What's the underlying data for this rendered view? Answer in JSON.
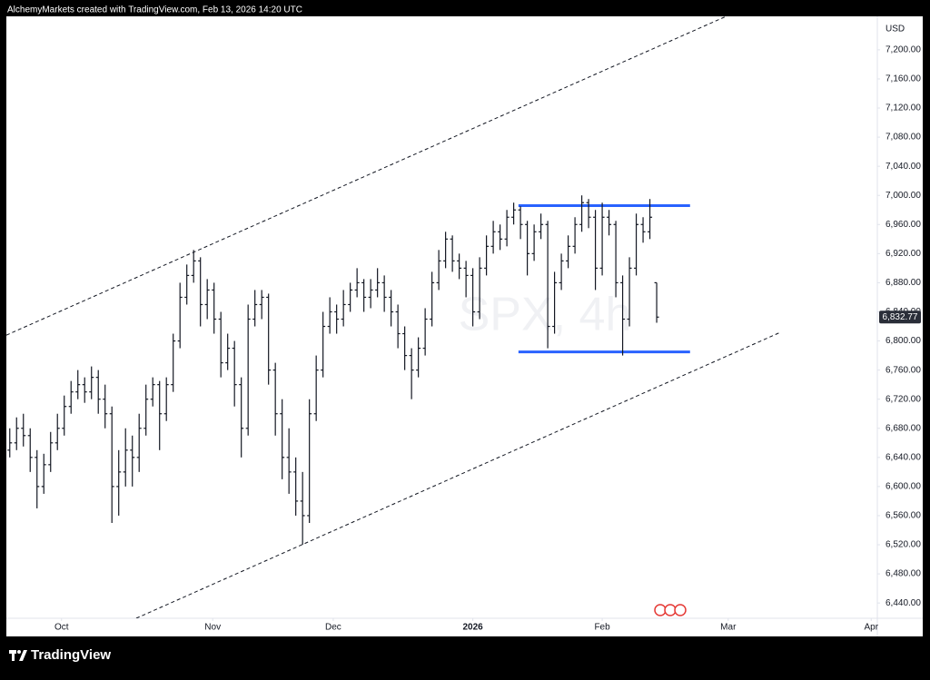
{
  "header": "AlchemyMarkets created with TradingView.com, Feb 13, 2026 14:20 UTC",
  "footer": {
    "logo_text": "TradingView"
  },
  "chart_data": {
    "type": "ohlc",
    "watermark": "SPX, 4h",
    "currency": "USD",
    "color": "#131722",
    "ylim": [
      6419,
      7246
    ],
    "yticks": [
      {
        "value": 6440,
        "label": "6,440.00"
      },
      {
        "value": 6480,
        "label": "6,480.00"
      },
      {
        "value": 6520,
        "label": "6,520.00"
      },
      {
        "value": 6560,
        "label": "6,560.00"
      },
      {
        "value": 6600,
        "label": "6,600.00"
      },
      {
        "value": 6640,
        "label": "6,640.00"
      },
      {
        "value": 6680,
        "label": "6,680.00"
      },
      {
        "value": 6720,
        "label": "6,720.00"
      },
      {
        "value": 6760,
        "label": "6,760.00"
      },
      {
        "value": 6800,
        "label": "6,800.00"
      },
      {
        "value": 6840,
        "label": "6,840.00"
      },
      {
        "value": 6880,
        "label": "6,880.00"
      },
      {
        "value": 6920,
        "label": "6,920.00"
      },
      {
        "value": 6960,
        "label": "6,960.00"
      },
      {
        "value": 7000,
        "label": "7,000.00"
      },
      {
        "value": 7040,
        "label": "7,040.00"
      },
      {
        "value": 7080,
        "label": "7,080.00"
      },
      {
        "value": 7120,
        "label": "7,120.00"
      },
      {
        "value": 7160,
        "label": "7,160.00"
      },
      {
        "value": 7200,
        "label": "7,200.00"
      }
    ],
    "xlim": [
      0,
      127.9
    ],
    "xticks": [
      {
        "value": 8.1,
        "label": "Oct"
      },
      {
        "value": 30.3,
        "label": "Nov"
      },
      {
        "value": 48,
        "label": "Dec"
      },
      {
        "value": 68.5,
        "label": "2026"
      },
      {
        "value": 87.5,
        "label": "Feb"
      },
      {
        "value": 106,
        "label": "Mar"
      },
      {
        "value": 127,
        "label": "Apr"
      }
    ],
    "last_value_label": "6,832.77",
    "ohlc": [
      [
        6650,
        6680,
        6640,
        6660
      ],
      [
        6660,
        6695,
        6650,
        6680
      ],
      [
        6680,
        6700,
        6655,
        6670
      ],
      [
        6670,
        6680,
        6620,
        6640
      ],
      [
        6640,
        6650,
        6570,
        6600
      ],
      [
        6600,
        6645,
        6590,
        6630
      ],
      [
        6630,
        6675,
        6620,
        6660
      ],
      [
        6660,
        6700,
        6650,
        6680
      ],
      [
        6680,
        6725,
        6670,
        6710
      ],
      [
        6710,
        6745,
        6700,
        6730
      ],
      [
        6730,
        6760,
        6720,
        6740
      ],
      [
        6740,
        6750,
        6715,
        6730
      ],
      [
        6730,
        6765,
        6720,
        6750
      ],
      [
        6750,
        6760,
        6700,
        6720
      ],
      [
        6720,
        6740,
        6680,
        6700
      ],
      [
        6700,
        6710,
        6550,
        6600
      ],
      [
        6600,
        6650,
        6560,
        6620
      ],
      [
        6620,
        6680,
        6600,
        6650
      ],
      [
        6650,
        6670,
        6600,
        6640
      ],
      [
        6640,
        6700,
        6620,
        6680
      ],
      [
        6680,
        6740,
        6670,
        6720
      ],
      [
        6720,
        6750,
        6710,
        6740
      ],
      [
        6740,
        6745,
        6650,
        6700
      ],
      [
        6700,
        6750,
        6690,
        6740
      ],
      [
        6740,
        6810,
        6730,
        6800
      ],
      [
        6800,
        6880,
        6790,
        6860
      ],
      [
        6860,
        6905,
        6850,
        6890
      ],
      [
        6890,
        6925,
        6880,
        6910
      ],
      [
        6910,
        6915,
        6820,
        6850
      ],
      [
        6850,
        6885,
        6830,
        6870
      ],
      [
        6870,
        6880,
        6810,
        6830
      ],
      [
        6830,
        6840,
        6750,
        6770
      ],
      [
        6770,
        6810,
        6760,
        6790
      ],
      [
        6790,
        6800,
        6710,
        6740
      ],
      [
        6740,
        6750,
        6640,
        6680
      ],
      [
        6680,
        6850,
        6670,
        6830
      ],
      [
        6830,
        6870,
        6820,
        6850
      ],
      [
        6850,
        6870,
        6830,
        6860
      ],
      [
        6860,
        6865,
        6740,
        6760
      ],
      [
        6760,
        6770,
        6670,
        6700
      ],
      [
        6700,
        6720,
        6610,
        6640
      ],
      [
        6640,
        6680,
        6590,
        6620
      ],
      [
        6620,
        6640,
        6560,
        6580
      ],
      [
        6580,
        6620,
        6520,
        6560
      ],
      [
        6560,
        6720,
        6550,
        6700
      ],
      [
        6700,
        6780,
        6690,
        6760
      ],
      [
        6760,
        6840,
        6750,
        6820
      ],
      [
        6820,
        6860,
        6810,
        6840
      ],
      [
        6840,
        6850,
        6810,
        6830
      ],
      [
        6830,
        6870,
        6820,
        6850
      ],
      [
        6850,
        6880,
        6840,
        6870
      ],
      [
        6870,
        6900,
        6860,
        6880
      ],
      [
        6880,
        6885,
        6840,
        6860
      ],
      [
        6860,
        6885,
        6845,
        6870
      ],
      [
        6870,
        6900,
        6860,
        6880
      ],
      [
        6880,
        6890,
        6840,
        6860
      ],
      [
        6860,
        6870,
        6820,
        6840
      ],
      [
        6840,
        6850,
        6790,
        6810
      ],
      [
        6810,
        6820,
        6760,
        6780
      ],
      [
        6780,
        6790,
        6720,
        6760
      ],
      [
        6760,
        6805,
        6750,
        6790
      ],
      [
        6790,
        6845,
        6780,
        6830
      ],
      [
        6830,
        6895,
        6820,
        6880
      ],
      [
        6880,
        6925,
        6870,
        6910
      ],
      [
        6910,
        6950,
        6900,
        6940
      ],
      [
        6940,
        6945,
        6895,
        6910
      ],
      [
        6910,
        6920,
        6885,
        6900
      ],
      [
        6900,
        6910,
        6860,
        6890
      ],
      [
        6890,
        6900,
        6820,
        6840
      ],
      [
        6840,
        6915,
        6830,
        6900
      ],
      [
        6900,
        6945,
        6890,
        6930
      ],
      [
        6930,
        6965,
        6920,
        6950
      ],
      [
        6950,
        6960,
        6925,
        6940
      ],
      [
        6940,
        6980,
        6930,
        6970
      ],
      [
        6970,
        6990,
        6960,
        6980
      ],
      [
        6980,
        6985,
        6940,
        6960
      ],
      [
        6960,
        6965,
        6890,
        6920
      ],
      [
        6920,
        6960,
        6910,
        6950
      ],
      [
        6950,
        6975,
        6940,
        6960
      ],
      [
        6960,
        6965,
        6790,
        6820
      ],
      [
        6820,
        6895,
        6810,
        6880
      ],
      [
        6880,
        6920,
        6870,
        6910
      ],
      [
        6910,
        6945,
        6900,
        6930
      ],
      [
        6930,
        6970,
        6920,
        6960
      ],
      [
        6960,
        7000,
        6950,
        6990
      ],
      [
        6990,
        6995,
        6955,
        6970
      ],
      [
        6970,
        6980,
        6870,
        6900
      ],
      [
        6900,
        6990,
        6890,
        6970
      ],
      [
        6970,
        6980,
        6945,
        6960
      ],
      [
        6960,
        6965,
        6860,
        6880
      ],
      [
        6880,
        6890,
        6780,
        6830
      ],
      [
        6830,
        6915,
        6820,
        6900
      ],
      [
        6900,
        6975,
        6890,
        6960
      ],
      [
        6960,
        6970,
        6935,
        6950
      ],
      [
        6950,
        6995,
        6940,
        6970
      ],
      [
        6880,
        6880,
        6825,
        6832.77
      ]
    ],
    "drawings": [
      {
        "kind": "dashed",
        "color": "#131722",
        "x": [
          0,
          105.7
        ],
        "y": [
          6808,
          7246
        ]
      },
      {
        "kind": "dashed",
        "color": "#131722",
        "x": [
          19.07,
          113.7
        ],
        "y": [
          6419,
          6812
        ]
      },
      {
        "kind": "solid",
        "color": "#2962ff",
        "x": [
          75.2,
          100.4
        ],
        "y": [
          6986,
          6986
        ]
      },
      {
        "kind": "solid",
        "color": "#2962ff",
        "x": [
          75.2,
          100.4
        ],
        "y": [
          6785,
          6785
        ]
      }
    ]
  }
}
